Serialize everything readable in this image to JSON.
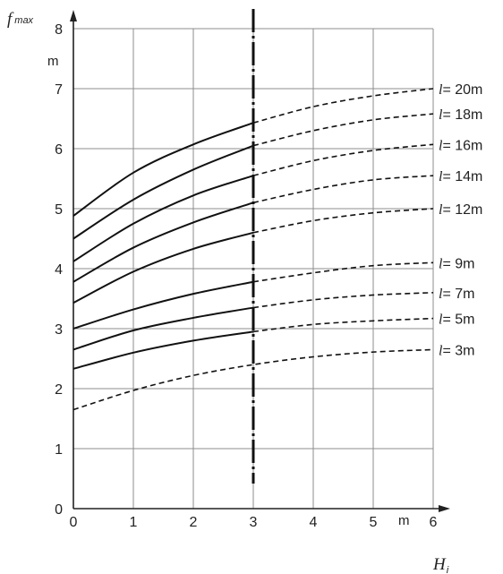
{
  "chart_data": {
    "type": "line",
    "ylabel": "f",
    "ylabel_sub": "max",
    "y_unit": "m",
    "xlabel": "H",
    "xlabel_sub": "i",
    "x_unit": "m",
    "xlim": [
      0,
      6
    ],
    "ylim": [
      0,
      8
    ],
    "x_ticks": [
      "0",
      "1",
      "2",
      "3",
      "4",
      "5",
      "6"
    ],
    "y_ticks": [
      "0",
      "1",
      "2",
      "3",
      "4",
      "5",
      "6",
      "7",
      "8"
    ],
    "grid": true,
    "solid_until_x": 3,
    "divider_x": 3,
    "series": [
      {
        "name": "l= 20m",
        "label_prefix": "l",
        "label_rest": "= 20m",
        "x": [
          0,
          1,
          2,
          3,
          4,
          5,
          6
        ],
        "y": [
          4.88,
          5.6,
          6.07,
          6.43,
          6.7,
          6.88,
          7.0
        ]
      },
      {
        "name": "l= 18m",
        "label_prefix": "l",
        "label_rest": "= 18m",
        "x": [
          0,
          1,
          2,
          3,
          4,
          5,
          6
        ],
        "y": [
          4.5,
          5.15,
          5.65,
          6.05,
          6.3,
          6.48,
          6.58
        ]
      },
      {
        "name": "l= 16m",
        "label_prefix": "l",
        "label_rest": "= 16m",
        "x": [
          0,
          1,
          2,
          3,
          4,
          5,
          6
        ],
        "y": [
          4.12,
          4.75,
          5.22,
          5.55,
          5.8,
          5.97,
          6.07
        ]
      },
      {
        "name": "l= 14m",
        "label_prefix": "l",
        "label_rest": "= 14m",
        "x": [
          0,
          1,
          2,
          3,
          4,
          5,
          6
        ],
        "y": [
          3.78,
          4.35,
          4.77,
          5.1,
          5.32,
          5.48,
          5.55
        ]
      },
      {
        "name": "l= 12m",
        "label_prefix": "l",
        "label_rest": "= 12m",
        "x": [
          0,
          1,
          2,
          3,
          4,
          5,
          6
        ],
        "y": [
          3.43,
          3.95,
          4.33,
          4.6,
          4.8,
          4.93,
          5.0
        ]
      },
      {
        "name": "l= 9m",
        "label_prefix": "l",
        "label_rest": "= 9m",
        "x": [
          0,
          1,
          2,
          3,
          4,
          5,
          6
        ],
        "y": [
          3.0,
          3.32,
          3.58,
          3.78,
          3.93,
          4.05,
          4.1
        ]
      },
      {
        "name": "l= 7m",
        "label_prefix": "l",
        "label_rest": "= 7m",
        "x": [
          0,
          1,
          2,
          3,
          4,
          5,
          6
        ],
        "y": [
          2.65,
          2.97,
          3.18,
          3.35,
          3.48,
          3.56,
          3.6
        ]
      },
      {
        "name": "l= 5m",
        "label_prefix": "l",
        "label_rest": "= 5m",
        "x": [
          0,
          1,
          2,
          3,
          4,
          5,
          6
        ],
        "y": [
          2.33,
          2.6,
          2.8,
          2.95,
          3.07,
          3.13,
          3.17
        ]
      },
      {
        "name": "l= 3m",
        "label_prefix": "l",
        "label_rest": "= 3m",
        "x": [
          0,
          1,
          2,
          3,
          4,
          5,
          6
        ],
        "y": [
          1.65,
          1.97,
          2.22,
          2.4,
          2.53,
          2.61,
          2.65
        ],
        "all_dashed": true
      }
    ]
  }
}
